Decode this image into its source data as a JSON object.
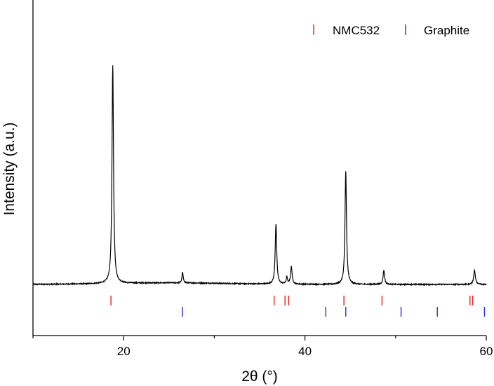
{
  "chart_data": {
    "type": "line",
    "xlabel": "2θ (°)",
    "ylabel": "Intensity (a.u.)",
    "xlim": [
      10,
      60
    ],
    "xticks": [
      20,
      40,
      60
    ],
    "yticks": [],
    "grid": false,
    "legend": {
      "placement": "top-right"
    },
    "baseline": 1.0,
    "peaks": [
      {
        "x": 18.8,
        "height": 31.0,
        "width": 0.1
      },
      {
        "x": 26.5,
        "height": 1.5,
        "width": 0.08
      },
      {
        "x": 36.8,
        "height": 8.5,
        "width": 0.1
      },
      {
        "x": 38.0,
        "height": 1.0,
        "width": 0.08
      },
      {
        "x": 38.5,
        "height": 2.5,
        "width": 0.1
      },
      {
        "x": 44.5,
        "height": 16.0,
        "width": 0.1
      },
      {
        "x": 48.7,
        "height": 2.0,
        "width": 0.1
      },
      {
        "x": 58.7,
        "height": 2.0,
        "width": 0.11
      }
    ],
    "reference_series": [
      {
        "name": "NMC532",
        "color": "#e8201f",
        "positions": [
          18.6,
          36.6,
          37.8,
          38.2,
          44.3,
          48.5,
          58.2,
          58.5
        ]
      },
      {
        "name": "Graphite",
        "color": "#1f2ee8",
        "positions": [
          26.5,
          42.3,
          44.5,
          50.6,
          54.6,
          59.8
        ]
      }
    ]
  }
}
